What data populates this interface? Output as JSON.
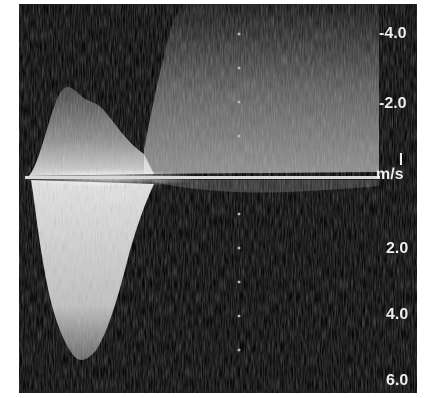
{
  "doppler": {
    "scale_labels": [
      "-4.0",
      "-2.0",
      "2.0",
      "4.0",
      "6.0"
    ],
    "unit_label": "m/s",
    "colors": {
      "background": "#030303",
      "signal": "#e8e8e8",
      "baseline": "#d8d8d8"
    }
  }
}
